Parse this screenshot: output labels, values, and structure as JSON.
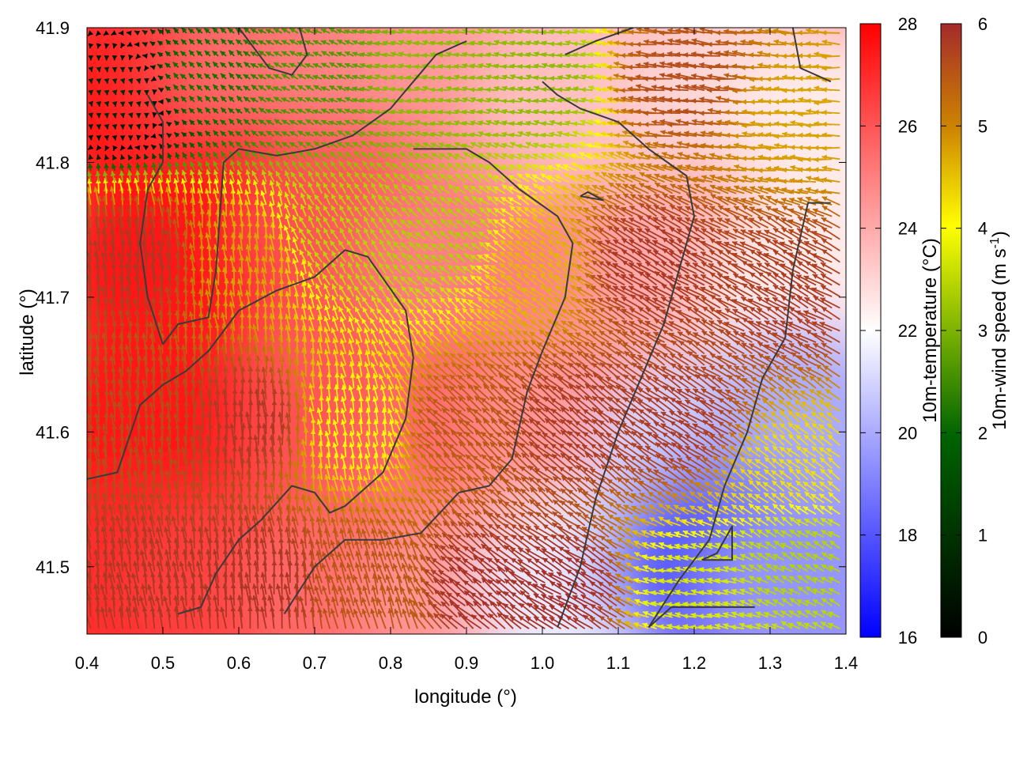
{
  "chart_data": {
    "type": "heatmap",
    "xlabel": "longitude (°)",
    "ylabel": "latitude (°)",
    "xlim": [
      0.4,
      1.4
    ],
    "ylim": [
      41.45,
      41.9
    ],
    "x_ticks": [
      "0.4",
      "0.5",
      "0.6",
      "0.7",
      "0.8",
      "0.9",
      "1.0",
      "1.1",
      "1.2",
      "1.3",
      "1.4"
    ],
    "y_ticks": [
      "41.5",
      "41.6",
      "41.7",
      "41.8",
      "41.9"
    ],
    "temperature_colorbar": {
      "label": "10m-temperature (°C)",
      "range": [
        16,
        28
      ],
      "ticks": [
        "16",
        "18",
        "20",
        "22",
        "24",
        "26",
        "28"
      ],
      "colors": [
        "#0000ff",
        "#ffffff",
        "#ff0000"
      ]
    },
    "wind_colorbar": {
      "label_main": "10m-wind speed (m s",
      "label_sup": "-1",
      "label_end": ")",
      "range": [
        0,
        6
      ],
      "ticks": [
        "0",
        "1",
        "2",
        "3",
        "4",
        "5",
        "6"
      ],
      "colors": [
        "#000000",
        "#006400",
        "#7cb300",
        "#ffff00",
        "#cd8500",
        "#a52a2a"
      ]
    },
    "temperature_field": [
      {
        "lon": 0.45,
        "lat": 41.85,
        "temp": 27.8
      },
      {
        "lon": 0.55,
        "lat": 41.87,
        "temp": 27.0
      },
      {
        "lon": 0.65,
        "lat": 41.88,
        "temp": 25.5
      },
      {
        "lon": 0.78,
        "lat": 41.86,
        "temp": 25.0
      },
      {
        "lon": 0.9,
        "lat": 41.87,
        "temp": 24.5
      },
      {
        "lon": 1.05,
        "lat": 41.85,
        "temp": 23.5
      },
      {
        "lon": 1.25,
        "lat": 41.85,
        "temp": 23.0
      },
      {
        "lon": 1.38,
        "lat": 41.82,
        "temp": 22.5
      },
      {
        "lon": 0.48,
        "lat": 41.72,
        "temp": 27.5
      },
      {
        "lon": 0.62,
        "lat": 41.75,
        "temp": 27.5
      },
      {
        "lon": 0.75,
        "lat": 41.75,
        "temp": 26.0
      },
      {
        "lon": 0.9,
        "lat": 41.72,
        "temp": 25.0
      },
      {
        "lon": 1.05,
        "lat": 41.7,
        "temp": 25.0
      },
      {
        "lon": 1.2,
        "lat": 41.72,
        "temp": 24.0
      },
      {
        "lon": 1.35,
        "lat": 41.7,
        "temp": 22.5
      },
      {
        "lon": 0.45,
        "lat": 41.6,
        "temp": 27.5
      },
      {
        "lon": 0.6,
        "lat": 41.58,
        "temp": 27.5
      },
      {
        "lon": 0.75,
        "lat": 41.6,
        "temp": 26.0
      },
      {
        "lon": 0.9,
        "lat": 41.6,
        "temp": 25.5
      },
      {
        "lon": 1.05,
        "lat": 41.6,
        "temp": 24.5
      },
      {
        "lon": 1.2,
        "lat": 41.58,
        "temp": 21.0
      },
      {
        "lon": 1.35,
        "lat": 41.6,
        "temp": 20.0
      },
      {
        "lon": 0.45,
        "lat": 41.48,
        "temp": 27.0
      },
      {
        "lon": 0.6,
        "lat": 41.48,
        "temp": 26.5
      },
      {
        "lon": 0.75,
        "lat": 41.48,
        "temp": 25.5
      },
      {
        "lon": 0.9,
        "lat": 41.47,
        "temp": 24.5
      },
      {
        "lon": 1.05,
        "lat": 41.48,
        "temp": 21.5
      },
      {
        "lon": 1.22,
        "lat": 41.5,
        "temp": 18.0
      },
      {
        "lon": 1.35,
        "lat": 41.48,
        "temp": 19.5
      }
    ],
    "wind_field": [
      {
        "lon": 0.45,
        "lat": 41.85,
        "u": 0.1,
        "v": -0.5
      },
      {
        "lon": 0.55,
        "lat": 41.86,
        "u": -1.0,
        "v": 1.0
      },
      {
        "lon": 0.7,
        "lat": 41.86,
        "u": -1.8,
        "v": 0.8
      },
      {
        "lon": 0.85,
        "lat": 41.86,
        "u": -2.5,
        "v": 0.5
      },
      {
        "lon": 1.0,
        "lat": 41.86,
        "u": -2.5,
        "v": 0.5
      },
      {
        "lon": 1.2,
        "lat": 41.86,
        "u": -5.5,
        "v": 0.6
      },
      {
        "lon": 1.35,
        "lat": 41.84,
        "u": -4.5,
        "v": 0.2
      },
      {
        "lon": 0.47,
        "lat": 41.72,
        "u": -0.5,
        "v": 5.8
      },
      {
        "lon": 0.6,
        "lat": 41.72,
        "u": -0.4,
        "v": 4.5
      },
      {
        "lon": 0.75,
        "lat": 41.74,
        "u": -1.5,
        "v": 2.5
      },
      {
        "lon": 0.88,
        "lat": 41.74,
        "u": -2.2,
        "v": 1.8
      },
      {
        "lon": 1.0,
        "lat": 41.72,
        "u": -3.5,
        "v": 2.5
      },
      {
        "lon": 1.15,
        "lat": 41.72,
        "u": -5.0,
        "v": 3.0
      },
      {
        "lon": 1.33,
        "lat": 41.7,
        "u": -5.0,
        "v": 2.8
      },
      {
        "lon": 0.47,
        "lat": 41.6,
        "u": -0.4,
        "v": 5.5
      },
      {
        "lon": 0.62,
        "lat": 41.6,
        "u": -0.3,
        "v": 5.8
      },
      {
        "lon": 0.75,
        "lat": 41.6,
        "u": -0.6,
        "v": 3.5
      },
      {
        "lon": 0.9,
        "lat": 41.6,
        "u": -4.0,
        "v": 3.6
      },
      {
        "lon": 1.05,
        "lat": 41.6,
        "u": -4.5,
        "v": 3.6
      },
      {
        "lon": 1.2,
        "lat": 41.6,
        "u": -4.8,
        "v": 3.2
      },
      {
        "lon": 1.33,
        "lat": 41.57,
        "u": -3.0,
        "v": 2.5
      },
      {
        "lon": 0.47,
        "lat": 41.48,
        "u": -1.0,
        "v": 5.7
      },
      {
        "lon": 0.62,
        "lat": 41.48,
        "u": -0.6,
        "v": 5.8
      },
      {
        "lon": 0.78,
        "lat": 41.48,
        "u": -1.5,
        "v": 5.2
      },
      {
        "lon": 0.92,
        "lat": 41.48,
        "u": -4.5,
        "v": 3.8
      },
      {
        "lon": 1.05,
        "lat": 41.48,
        "u": -5.0,
        "v": 3.2
      },
      {
        "lon": 1.2,
        "lat": 41.48,
        "u": -3.2,
        "v": 0.6
      },
      {
        "lon": 1.35,
        "lat": 41.5,
        "u": -2.5,
        "v": 1.5
      }
    ],
    "contours": [
      [
        [
          0.4,
          41.565
        ],
        [
          0.44,
          41.57
        ],
        [
          0.47,
          41.62
        ],
        [
          0.5,
          41.635
        ],
        [
          0.53,
          41.645
        ],
        [
          0.56,
          41.66
        ],
        [
          0.6,
          41.69
        ],
        [
          0.65,
          41.705
        ],
        [
          0.7,
          41.715
        ],
        [
          0.74,
          41.735
        ],
        [
          0.77,
          41.73
        ],
        [
          0.82,
          41.69
        ],
        [
          0.83,
          41.655
        ],
        [
          0.82,
          41.61
        ],
        [
          0.79,
          41.57
        ],
        [
          0.74,
          41.545
        ],
        [
          0.72,
          41.54
        ],
        [
          0.7,
          41.555
        ],
        [
          0.67,
          41.56
        ],
        [
          0.63,
          41.535
        ],
        [
          0.6,
          41.52
        ],
        [
          0.57,
          41.495
        ],
        [
          0.55,
          41.47
        ],
        [
          0.52,
          41.465
        ]
      ],
      [
        [
          0.5,
          41.665
        ],
        [
          0.52,
          41.68
        ],
        [
          0.56,
          41.685
        ],
        [
          0.57,
          41.72
        ],
        [
          0.58,
          41.8
        ],
        [
          0.6,
          41.81
        ],
        [
          0.65,
          41.805
        ],
        [
          0.7,
          41.81
        ],
        [
          0.75,
          41.82
        ],
        [
          0.8,
          41.84
        ],
        [
          0.83,
          41.86
        ],
        [
          0.86,
          41.88
        ],
        [
          0.9,
          41.89
        ]
      ],
      [
        [
          0.5,
          41.665
        ],
        [
          0.48,
          41.7
        ],
        [
          0.47,
          41.74
        ],
        [
          0.48,
          41.78
        ],
        [
          0.5,
          41.8
        ],
        [
          0.5,
          41.83
        ],
        [
          0.48,
          41.85
        ]
      ],
      [
        [
          0.66,
          41.465
        ],
        [
          0.7,
          41.5
        ],
        [
          0.74,
          41.52
        ],
        [
          0.79,
          41.52
        ],
        [
          0.84,
          41.525
        ],
        [
          0.89,
          41.555
        ],
        [
          0.93,
          41.56
        ],
        [
          0.96,
          41.58
        ],
        [
          0.98,
          41.63
        ],
        [
          1.0,
          41.66
        ],
        [
          1.03,
          41.7
        ],
        [
          1.04,
          41.74
        ],
        [
          1.02,
          41.76
        ],
        [
          0.97,
          41.78
        ],
        [
          0.93,
          41.8
        ],
        [
          0.9,
          41.81
        ],
        [
          0.86,
          41.81
        ],
        [
          0.83,
          41.81
        ]
      ],
      [
        [
          1.02,
          41.455
        ],
        [
          1.05,
          41.5
        ],
        [
          1.07,
          41.55
        ],
        [
          1.1,
          41.6
        ],
        [
          1.13,
          41.64
        ],
        [
          1.16,
          41.68
        ],
        [
          1.18,
          41.72
        ],
        [
          1.2,
          41.76
        ],
        [
          1.19,
          41.79
        ],
        [
          1.14,
          41.81
        ],
        [
          1.1,
          41.83
        ],
        [
          1.05,
          41.84
        ],
        [
          1.02,
          41.85
        ],
        [
          1.0,
          41.86
        ]
      ],
      [
        [
          1.14,
          41.455
        ],
        [
          1.18,
          41.49
        ],
        [
          1.22,
          41.52
        ],
        [
          1.24,
          41.56
        ],
        [
          1.27,
          41.6
        ],
        [
          1.29,
          41.64
        ],
        [
          1.32,
          41.67
        ],
        [
          1.33,
          41.72
        ],
        [
          1.35,
          41.77
        ],
        [
          1.38,
          41.77
        ]
      ],
      [
        [
          1.03,
          41.88
        ],
        [
          1.07,
          41.89
        ],
        [
          1.12,
          41.9
        ]
      ],
      [
        [
          1.33,
          41.9
        ],
        [
          1.34,
          41.87
        ],
        [
          1.38,
          41.86
        ]
      ],
      [
        [
          1.05,
          41.775
        ],
        [
          1.08,
          41.772
        ],
        [
          1.06,
          41.778
        ],
        [
          1.05,
          41.775
        ]
      ],
      [
        [
          1.21,
          41.505
        ],
        [
          1.25,
          41.505
        ],
        [
          1.25,
          41.53
        ],
        [
          1.23,
          41.51
        ],
        [
          1.21,
          41.505
        ]
      ],
      [
        [
          1.14,
          41.455
        ],
        [
          1.17,
          41.47
        ],
        [
          1.22,
          41.47
        ],
        [
          1.28,
          41.47
        ]
      ],
      [
        [
          0.6,
          41.9
        ],
        [
          0.64,
          41.87
        ],
        [
          0.67,
          41.865
        ],
        [
          0.69,
          41.88
        ],
        [
          0.68,
          41.9
        ]
      ]
    ]
  }
}
